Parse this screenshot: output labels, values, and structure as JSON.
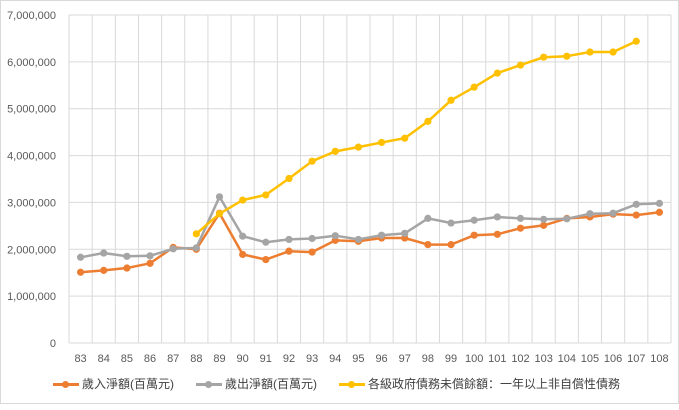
{
  "chart_data": {
    "type": "line",
    "title": "",
    "xlabel": "",
    "ylabel": "",
    "ylim": [
      0,
      7000000
    ],
    "y_ticks": [
      "0",
      "1,000,000",
      "2,000,000",
      "3,000,000",
      "4,000,000",
      "5,000,000",
      "6,000,000",
      "7,000,000"
    ],
    "grid": true,
    "legend_position": "bottom",
    "categories": [
      "83",
      "84",
      "85",
      "86",
      "87",
      "88",
      "89",
      "90",
      "91",
      "92",
      "93",
      "94",
      "95",
      "96",
      "97",
      "98",
      "99",
      "100",
      "101",
      "102",
      "103",
      "104",
      "105",
      "106",
      "107",
      "108"
    ],
    "series": [
      {
        "name": "歲入淨額(百萬元)",
        "color": "#ED7D31",
        "values": [
          1510000,
          1550000,
          1600000,
          1700000,
          2040000,
          2000000,
          2770000,
          1890000,
          1780000,
          1960000,
          1940000,
          2190000,
          2170000,
          2240000,
          2240000,
          2100000,
          2100000,
          2300000,
          2320000,
          2450000,
          2510000,
          2660000,
          2690000,
          2750000,
          2730000,
          2790000
        ]
      },
      {
        "name": "歲出淨額(百萬元)",
        "color": "#A5A5A5",
        "values": [
          1830000,
          1920000,
          1850000,
          1860000,
          2010000,
          2030000,
          3120000,
          2280000,
          2150000,
          2210000,
          2230000,
          2290000,
          2210000,
          2300000,
          2340000,
          2660000,
          2560000,
          2620000,
          2690000,
          2660000,
          2640000,
          2650000,
          2760000,
          2770000,
          2960000,
          2980000
        ]
      },
      {
        "name": "各級政府債務未償餘額：一年以上非自償性債務",
        "color": "#FFC000",
        "values": [
          null,
          null,
          null,
          null,
          null,
          2330000,
          2760000,
          3050000,
          3160000,
          3510000,
          3880000,
          4090000,
          4180000,
          4280000,
          4370000,
          4730000,
          5180000,
          5460000,
          5760000,
          5930000,
          6100000,
          6120000,
          6210000,
          6210000,
          6440000,
          null
        ]
      }
    ]
  },
  "legend": {
    "items": [
      {
        "label": "歲入淨額(百萬元)",
        "color": "#ED7D31"
      },
      {
        "label": "歲出淨額(百萬元)",
        "color": "#A5A5A5"
      },
      {
        "label": "各級政府債務未償餘額：一年以上非自償性債務",
        "color": "#FFC000"
      }
    ]
  }
}
